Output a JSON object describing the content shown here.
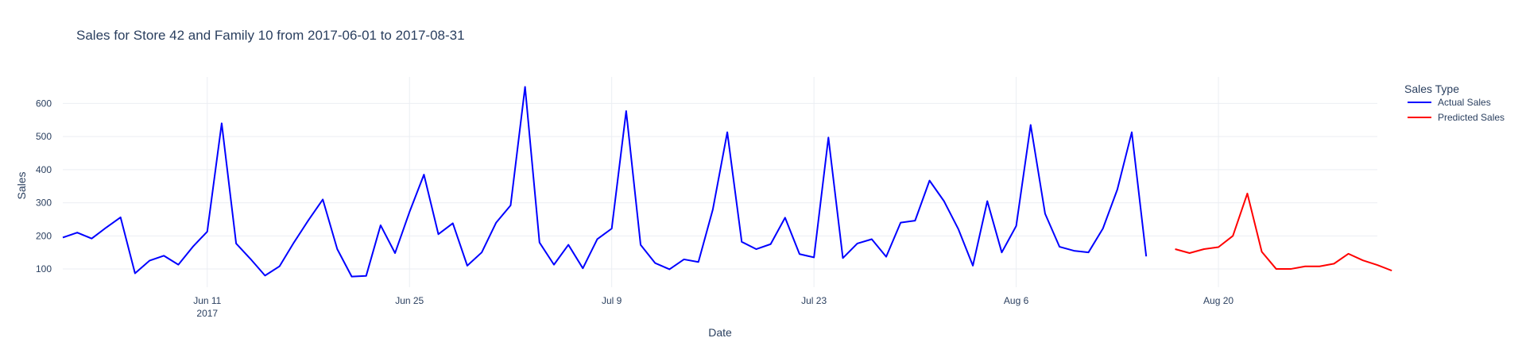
{
  "chart_data": {
    "type": "line",
    "title": "Sales for Store 42 and Family 10 from 2017-06-01 to 2017-08-31",
    "xlabel": "Date",
    "ylabel": "Sales",
    "x_range": [
      "2017-06-01",
      "2017-08-31"
    ],
    "ylim": [
      45,
      680
    ],
    "y_ticks": [
      100,
      200,
      300,
      400,
      500,
      600
    ],
    "x_ticks": [
      {
        "date": "2017-06-11",
        "label": "Jun 11",
        "sublabel": "2017"
      },
      {
        "date": "2017-06-25",
        "label": "Jun 25",
        "sublabel": ""
      },
      {
        "date": "2017-07-09",
        "label": "Jul 9",
        "sublabel": ""
      },
      {
        "date": "2017-07-23",
        "label": "Jul 23",
        "sublabel": ""
      },
      {
        "date": "2017-08-06",
        "label": "Aug 6",
        "sublabel": ""
      },
      {
        "date": "2017-08-20",
        "label": "Aug 20",
        "sublabel": ""
      }
    ],
    "grid": true,
    "legend": {
      "title": "Sales Type",
      "placement": "top-right"
    },
    "series": [
      {
        "name": "Actual Sales",
        "color": "#0000ff",
        "start_date": "2017-06-01",
        "values": [
          195,
          210,
          192,
          225,
          256,
          87,
          125,
          140,
          113,
          167,
          213,
          540,
          177,
          130,
          80,
          108,
          180,
          247,
          310,
          160,
          77,
          79,
          232,
          148,
          272,
          385,
          205,
          238,
          110,
          150,
          240,
          292,
          650,
          180,
          113,
          173,
          102,
          190,
          222,
          577,
          173,
          118,
          99,
          129,
          121,
          280,
          513,
          182,
          160,
          175,
          255,
          145,
          135,
          497,
          133,
          177,
          190,
          137,
          240,
          246,
          367,
          305,
          220,
          110,
          305,
          150,
          230,
          535,
          267,
          167,
          155,
          150,
          222,
          340,
          513,
          138
        ]
      },
      {
        "name": "Predicted Sales",
        "color": "#ff0000",
        "start_date": "2017-08-17",
        "values": [
          160,
          148,
          160,
          166,
          200,
          328,
          152,
          100,
          100,
          108,
          108,
          116,
          146,
          126,
          112,
          95
        ]
      }
    ]
  }
}
